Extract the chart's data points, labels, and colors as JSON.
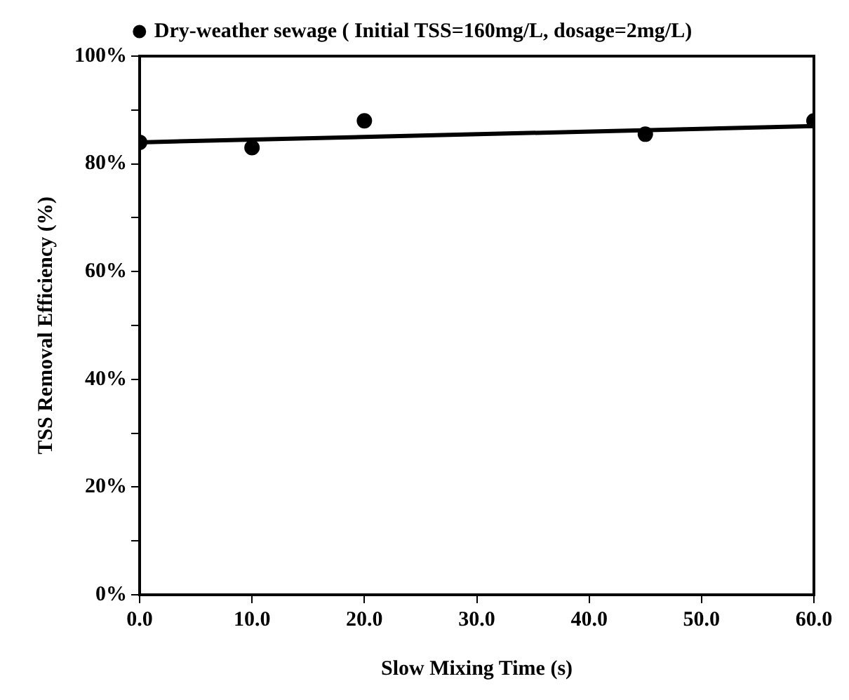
{
  "chart_data": {
    "type": "scatter",
    "xlabel": "Slow Mixing Time (s)",
    "ylabel": "TSS Removal Efficiency (%)",
    "series": [
      {
        "name": "Dry-weather sewage ( Initial TSS=160mg/L, dosage=2mg/L)",
        "color": "#000000",
        "x": [
          0,
          10,
          20,
          45,
          60
        ],
        "values": [
          84,
          83,
          88,
          85.5,
          88
        ],
        "marker": "circle"
      },
      {
        "type": "line",
        "color": "#000000",
        "x": [
          0,
          60
        ],
        "values": [
          84,
          87
        ]
      }
    ],
    "xlim": [
      0,
      60
    ],
    "xticks": [
      {
        "value": 0,
        "label": "0.0"
      },
      {
        "value": 10,
        "label": "10.0"
      },
      {
        "value": 20,
        "label": "20.0"
      },
      {
        "value": 30,
        "label": "30.0"
      },
      {
        "value": 40,
        "label": "40.0"
      },
      {
        "value": 50,
        "label": "50.0"
      },
      {
        "value": 60,
        "label": "60.0"
      }
    ],
    "ylim": [
      0,
      100
    ],
    "yticks": [
      {
        "value": 0,
        "label": "0%"
      },
      {
        "value": 10,
        "label": null
      },
      {
        "value": 20,
        "label": "20%"
      },
      {
        "value": 30,
        "label": null
      },
      {
        "value": 40,
        "label": "40%"
      },
      {
        "value": 50,
        "label": null
      },
      {
        "value": 60,
        "label": "60%"
      },
      {
        "value": 70,
        "label": null
      },
      {
        "value": 80,
        "label": "80%"
      },
      {
        "value": 90,
        "label": null
      },
      {
        "value": 100,
        "label": "100%"
      }
    ],
    "grid": false,
    "legend": "top"
  }
}
